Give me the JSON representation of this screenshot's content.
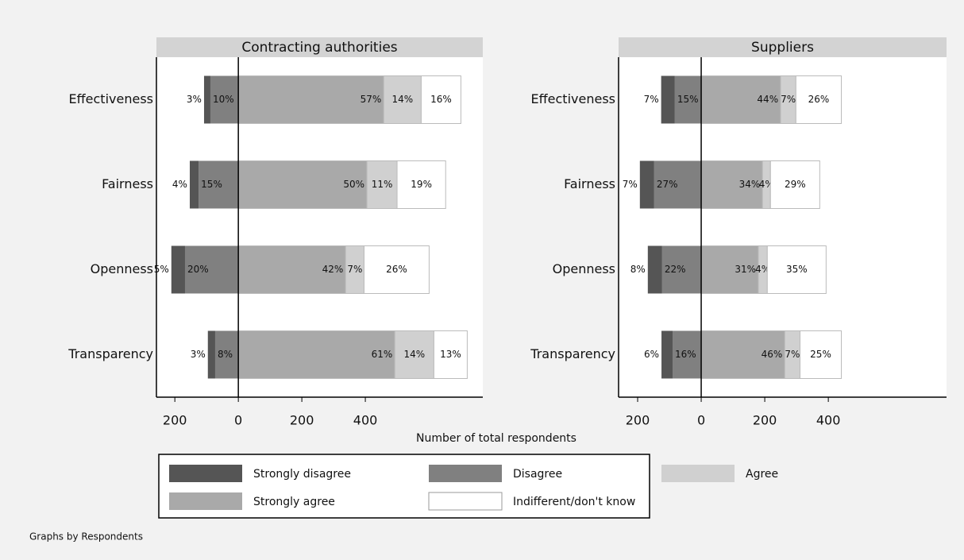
{
  "chart_data": [
    {
      "type": "diverging_bar",
      "title": "Contracting authorities",
      "categories": [
        "Effectiveness",
        "Fairness",
        "Openness",
        "Transparency"
      ],
      "xlim": [
        -258,
        770
      ],
      "xticks": [
        {
          "value": -200,
          "label": "200"
        },
        0,
        200,
        400
      ],
      "series": [
        {
          "name": "Strongly disagree",
          "color": "#555555",
          "side": "left",
          "values": [
            20,
            28,
            43,
            23
          ],
          "labels": [
            "3%",
            "4%",
            "5%",
            "3%"
          ]
        },
        {
          "name": "Disagree",
          "color": "#808080",
          "side": "left",
          "values": [
            88,
            125,
            168,
            73
          ],
          "labels": [
            "10%",
            "15%",
            "20%",
            "8%"
          ]
        },
        {
          "name": "Strongly agree",
          "color": "#a9a9a9",
          "side": "right",
          "values": [
            458,
            405,
            338,
            493
          ],
          "labels": [
            "57%",
            "50%",
            "42%",
            "61%"
          ]
        },
        {
          "name": "Agree",
          "color": "#d0d0d0",
          "side": "right",
          "values": [
            118,
            95,
            58,
            123
          ],
          "labels": [
            "14%",
            "11%",
            "7%",
            "14%"
          ]
        },
        {
          "name": "Indifferent/don't know",
          "color": "#ffffff",
          "side": "right",
          "values": [
            125,
            153,
            205,
            105
          ],
          "labels": [
            "16%",
            "19%",
            "26%",
            "13%"
          ]
        }
      ]
    },
    {
      "type": "diverging_bar",
      "title": "Suppliers",
      "categories": [
        "Effectiveness",
        "Fairness",
        "Openness",
        "Transparency"
      ],
      "xlim": [
        -260,
        772
      ],
      "xticks": [
        {
          "value": -200,
          "label": "200"
        },
        0,
        200,
        400
      ],
      "series": [
        {
          "name": "Strongly disagree",
          "color": "#555555",
          "side": "left",
          "values": [
            43,
            45,
            45,
            35
          ],
          "labels": [
            "7%",
            "7%",
            "8%",
            "6%"
          ]
        },
        {
          "name": "Disagree",
          "color": "#808080",
          "side": "left",
          "values": [
            83,
            148,
            123,
            90
          ],
          "labels": [
            "15%",
            "27%",
            "22%",
            "16%"
          ]
        },
        {
          "name": "Strongly agree",
          "color": "#a9a9a9",
          "side": "right",
          "values": [
            250,
            193,
            180,
            263
          ],
          "labels": [
            "44%",
            "34%",
            "31%",
            "46%"
          ]
        },
        {
          "name": "Agree",
          "color": "#d0d0d0",
          "side": "right",
          "values": [
            48,
            25,
            28,
            48
          ],
          "labels": [
            "7%",
            "4%",
            "4%",
            "7%"
          ]
        },
        {
          "name": "Indifferent/don't know",
          "color": "#ffffff",
          "side": "right",
          "values": [
            143,
            155,
            185,
            130
          ],
          "labels": [
            "26%",
            "29%",
            "35%",
            "25%"
          ]
        }
      ]
    }
  ],
  "x_label": "Number of total respondents",
  "note": "Graphs by Respondents"
}
